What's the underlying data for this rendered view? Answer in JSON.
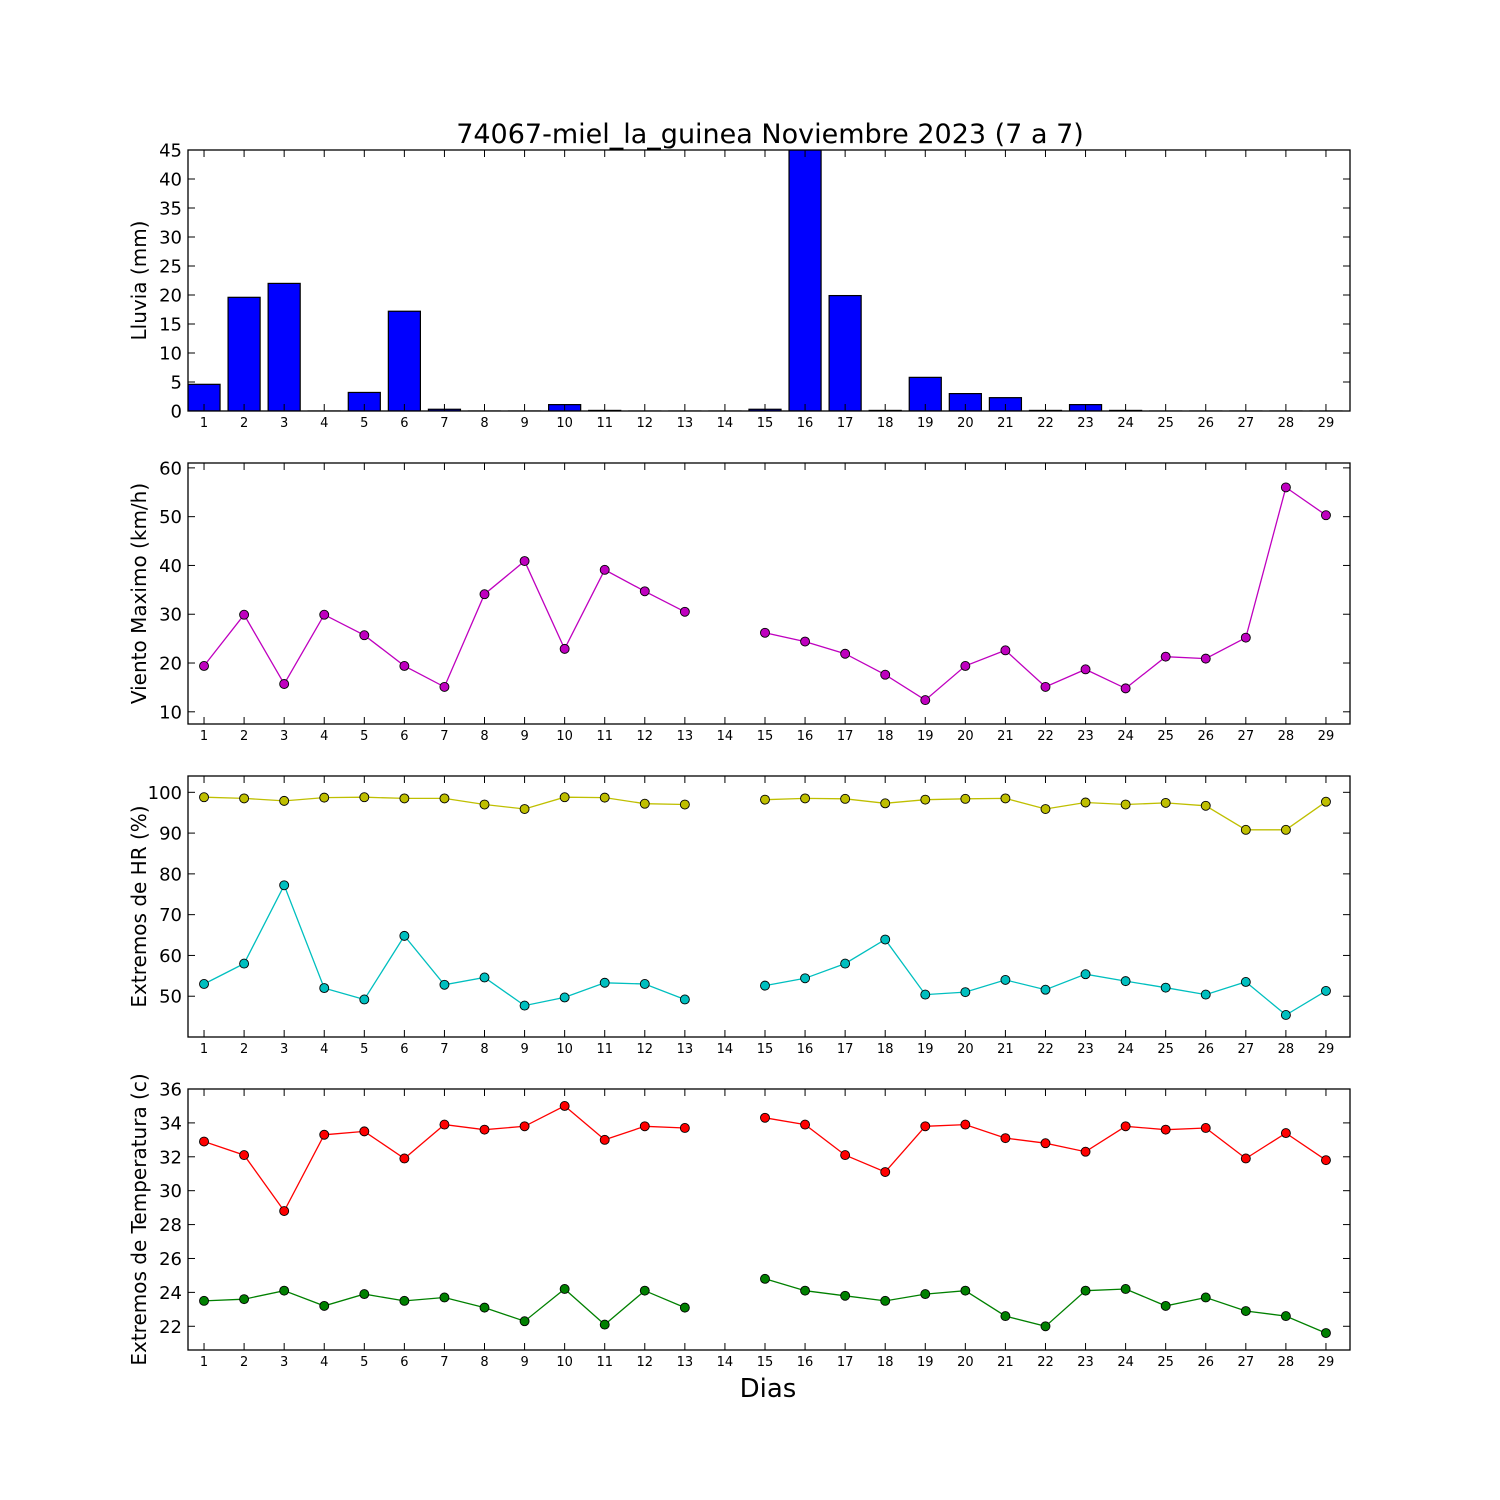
{
  "title": "74067-miel_la_guinea Noviembre 2023  (7 a 7)",
  "xlabel": "Dias",
  "chart_data": [
    {
      "type": "bar",
      "ylabel": "Lluvia (mm)",
      "ylim": [
        0,
        45
      ],
      "yticks": [
        0,
        5,
        10,
        15,
        20,
        25,
        30,
        35,
        40,
        45
      ],
      "x": [
        1,
        2,
        3,
        4,
        5,
        6,
        7,
        8,
        9,
        10,
        11,
        12,
        13,
        14,
        15,
        16,
        17,
        18,
        19,
        20,
        21,
        22,
        23,
        24,
        25,
        26,
        27,
        28,
        29
      ],
      "series": [
        {
          "color": "#0000ff",
          "values": [
            4.6,
            19.6,
            22.0,
            0.0,
            3.2,
            17.2,
            0.3,
            0.0,
            0.0,
            1.1,
            0.1,
            0.0,
            0.0,
            0.0,
            0.3,
            45.0,
            19.9,
            0.1,
            5.8,
            3.0,
            2.3,
            0.1,
            1.1,
            0.1,
            0.0,
            0.0,
            0.0,
            0.0,
            0.0
          ]
        }
      ],
      "grid": false
    },
    {
      "type": "line",
      "ylabel": "Viento Maximo (km/h)",
      "ylim": [
        7.5,
        61
      ],
      "yticks": [
        10,
        20,
        30,
        40,
        50,
        60
      ],
      "x": [
        1,
        2,
        3,
        4,
        5,
        6,
        7,
        8,
        9,
        10,
        11,
        12,
        13,
        14,
        15,
        16,
        17,
        18,
        19,
        20,
        21,
        22,
        23,
        24,
        25,
        26,
        27,
        28,
        29
      ],
      "series": [
        {
          "color": "#bf00bf",
          "values": [
            19.4,
            29.9,
            15.7,
            29.9,
            25.7,
            19.4,
            15.1,
            34.1,
            40.9,
            22.9,
            39.1,
            34.7,
            30.5,
            null,
            26.2,
            24.4,
            21.9,
            17.6,
            12.4,
            19.4,
            22.6,
            15.1,
            18.7,
            14.8,
            21.3,
            20.9,
            25.2,
            56.0,
            50.3
          ]
        }
      ],
      "grid": false
    },
    {
      "type": "line",
      "ylabel": "Extremos de HR (%)",
      "ylim": [
        40,
        104
      ],
      "yticks": [
        50,
        60,
        70,
        80,
        90,
        100
      ],
      "x": [
        1,
        2,
        3,
        4,
        5,
        6,
        7,
        8,
        9,
        10,
        11,
        12,
        13,
        14,
        15,
        16,
        17,
        18,
        19,
        20,
        21,
        22,
        23,
        24,
        25,
        26,
        27,
        28,
        29
      ],
      "series": [
        {
          "color": "#bfbf00",
          "values": [
            98.8,
            98.5,
            97.9,
            98.7,
            98.8,
            98.5,
            98.5,
            97.0,
            95.9,
            98.8,
            98.7,
            97.2,
            97.0,
            null,
            98.2,
            98.5,
            98.4,
            97.3,
            98.2,
            98.4,
            98.5,
            95.9,
            97.5,
            97.0,
            97.4,
            96.7,
            90.8,
            90.8,
            97.7
          ]
        },
        {
          "color": "#00bfbf",
          "values": [
            53.0,
            58.0,
            77.2,
            52.0,
            49.2,
            64.8,
            52.8,
            54.6,
            47.7,
            49.7,
            53.3,
            53.0,
            49.2,
            null,
            52.6,
            54.4,
            58.0,
            63.9,
            50.4,
            51.0,
            54.0,
            51.6,
            55.4,
            53.7,
            52.1,
            50.4,
            53.5,
            45.4,
            51.3
          ]
        }
      ],
      "grid": false
    },
    {
      "type": "line",
      "ylabel": "Extremos de Temperatura (c)",
      "ylim": [
        20.6,
        36
      ],
      "yticks": [
        22,
        24,
        26,
        28,
        30,
        32,
        34,
        36
      ],
      "x": [
        1,
        2,
        3,
        4,
        5,
        6,
        7,
        8,
        9,
        10,
        11,
        12,
        13,
        14,
        15,
        16,
        17,
        18,
        19,
        20,
        21,
        22,
        23,
        24,
        25,
        26,
        27,
        28,
        29
      ],
      "series": [
        {
          "color": "#ff0000",
          "values": [
            32.9,
            32.1,
            28.8,
            33.3,
            33.5,
            31.9,
            33.9,
            33.6,
            33.8,
            35.0,
            33.0,
            33.8,
            33.7,
            null,
            34.3,
            33.9,
            32.1,
            31.1,
            33.8,
            33.9,
            33.1,
            32.8,
            32.3,
            33.8,
            33.6,
            33.7,
            31.9,
            33.4,
            31.8
          ]
        },
        {
          "color": "#008000",
          "values": [
            23.5,
            23.6,
            24.1,
            23.2,
            23.9,
            23.5,
            23.7,
            23.1,
            22.3,
            24.2,
            22.1,
            24.1,
            23.1,
            null,
            24.8,
            24.1,
            23.8,
            23.5,
            23.9,
            24.1,
            22.6,
            22.0,
            24.1,
            24.2,
            23.2,
            23.7,
            22.9,
            22.6,
            21.6
          ]
        }
      ],
      "grid": false
    }
  ]
}
